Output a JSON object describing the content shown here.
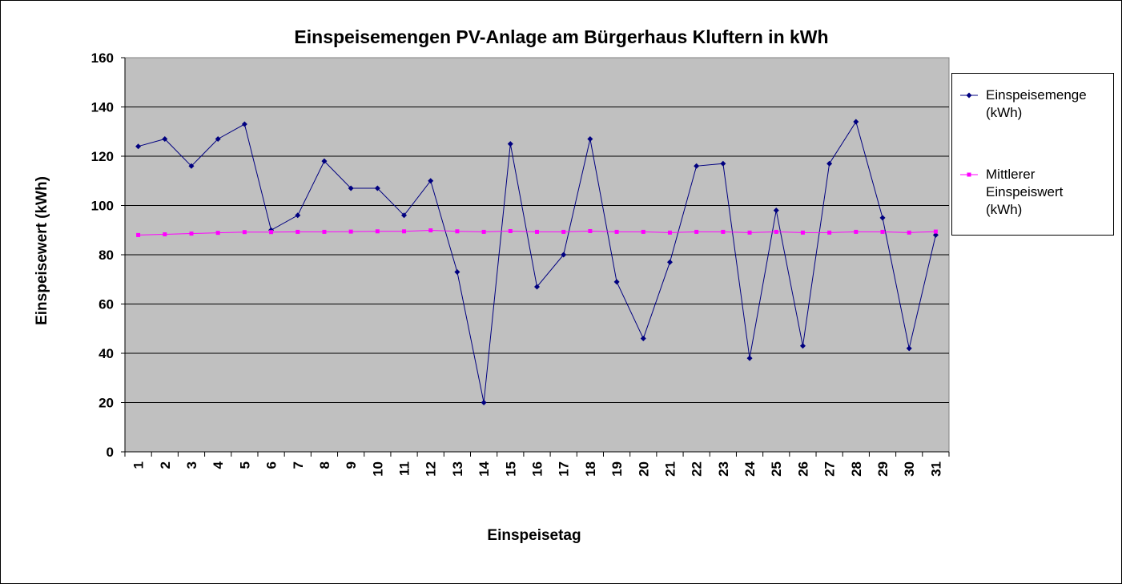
{
  "chart_data": {
    "type": "line",
    "title": "Einspeisemengen PV-Anlage am Bürgerhaus Kluftern in kWh",
    "xlabel": "Einspeisetag",
    "ylabel": "Einspeisewert (kWh)",
    "ylim": [
      0,
      160
    ],
    "yticks": [
      0,
      20,
      40,
      60,
      80,
      100,
      120,
      140,
      160
    ],
    "grid": true,
    "legend_position": "right",
    "plot_background": "#C0C0C0",
    "categories": [
      "1",
      "2",
      "3",
      "4",
      "5",
      "6",
      "7",
      "8",
      "9",
      "10",
      "11",
      "12",
      "13",
      "14",
      "15",
      "16",
      "17",
      "18",
      "19",
      "20",
      "21",
      "22",
      "23",
      "24",
      "25",
      "26",
      "27",
      "28",
      "29",
      "30",
      "31"
    ],
    "series": [
      {
        "name": "Einspeisemenge\n(kWh)",
        "color": "#000080",
        "marker": "diamond",
        "values": [
          124,
          127,
          116,
          127,
          133,
          90,
          96,
          118,
          107,
          107,
          96,
          110,
          73,
          20,
          125,
          67,
          80,
          127,
          69,
          46,
          77,
          116,
          117,
          38,
          98,
          43,
          117,
          134,
          95,
          42,
          88
        ]
      },
      {
        "name": "Mittlerer\nEinspeiswert\n(kWh)",
        "color": "#FF00FF",
        "marker": "square",
        "values": [
          88,
          88.3,
          88.6,
          88.9,
          89.2,
          89.2,
          89.3,
          89.3,
          89.4,
          89.5,
          89.5,
          89.9,
          89.5,
          89.3,
          89.6,
          89.3,
          89.3,
          89.6,
          89.3,
          89.3,
          89,
          89.3,
          89.3,
          89,
          89.3,
          89,
          89,
          89.3,
          89.3,
          89,
          89.4
        ]
      }
    ]
  }
}
